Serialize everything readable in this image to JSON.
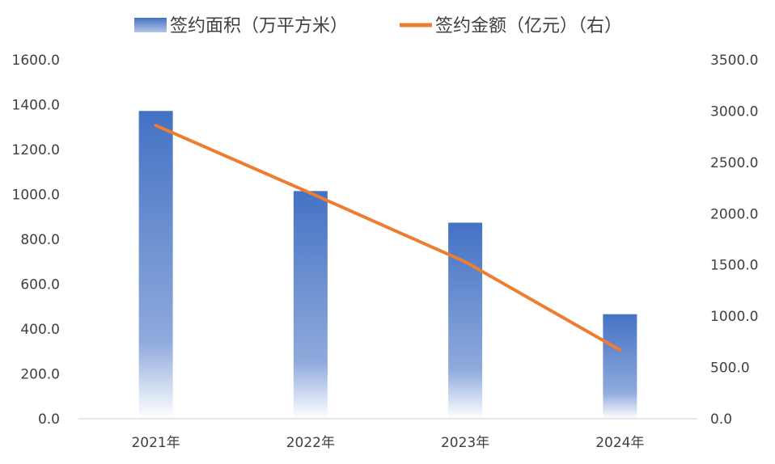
{
  "chart_data": {
    "type": "bar",
    "categories": [
      "2021年",
      "2022年",
      "2023年",
      "2024年"
    ],
    "series": [
      {
        "name": "签约面积（万平方米）",
        "type": "bar",
        "axis": "left",
        "color": "#4472C4",
        "values": [
          1372,
          1015,
          874,
          466
        ]
      },
      {
        "name": "签约金额（亿元）（右）",
        "type": "line",
        "axis": "right",
        "color": "#ED7D31",
        "values": [
          2860,
          2200,
          1530,
          670
        ]
      }
    ],
    "y_left": {
      "ylim": [
        0,
        1600
      ],
      "ticks": [
        "0.0",
        "200.0",
        "400.0",
        "600.0",
        "800.0",
        "1000.0",
        "1200.0",
        "1400.0",
        "1600.0"
      ]
    },
    "y_right": {
      "ylim": [
        0,
        3500
      ],
      "ticks": [
        "0.0",
        "500.0",
        "1000.0",
        "1500.0",
        "2000.0",
        "2500.0",
        "3000.0",
        "3500.0"
      ]
    },
    "legend_position": "top-center",
    "grid": false
  }
}
